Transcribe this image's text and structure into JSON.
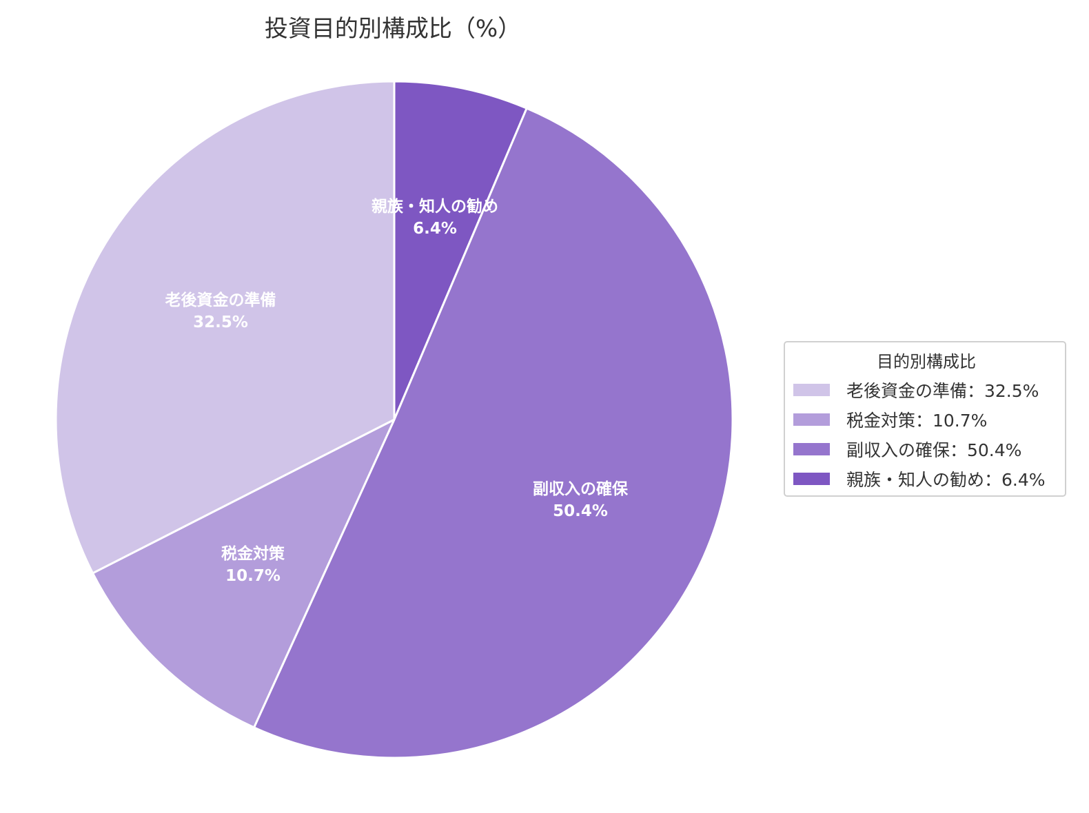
{
  "title": "投資目的別構成比（%）",
  "legend": {
    "title": "目的別構成比",
    "items": [
      {
        "label": "老後資金の準備：32.5%",
        "color": "#d0c4e8"
      },
      {
        "label": "税金対策：10.7%",
        "color": "#b39ddb"
      },
      {
        "label": "副収入の確保：50.4%",
        "color": "#9575cd"
      },
      {
        "label": "親族・知人の勧め：6.4%",
        "color": "#7e57c2"
      }
    ]
  },
  "slices": [
    {
      "name": "親族・知人の勧め",
      "pct_label": "6.4%"
    },
    {
      "name": "副収入の確保",
      "pct_label": "50.4%"
    },
    {
      "name": "税金対策",
      "pct_label": "10.7%"
    },
    {
      "name": "老後資金の準備",
      "pct_label": "32.5%"
    }
  ],
  "chart_data": {
    "type": "pie",
    "title": "投資目的別構成比（%）",
    "categories": [
      "老後資金の準備",
      "税金対策",
      "副収入の確保",
      "親族・知人の勧め"
    ],
    "values": [
      32.5,
      10.7,
      50.4,
      6.4
    ],
    "colors": [
      "#d0c4e8",
      "#b39ddb",
      "#9575cd",
      "#7e57c2"
    ],
    "legend_title": "目的別構成比",
    "legend_position": "right",
    "start_angle": "12 o'clock, clockwise from 親族・知人の勧め",
    "data_labels": "category name + percentage, inside slices"
  }
}
